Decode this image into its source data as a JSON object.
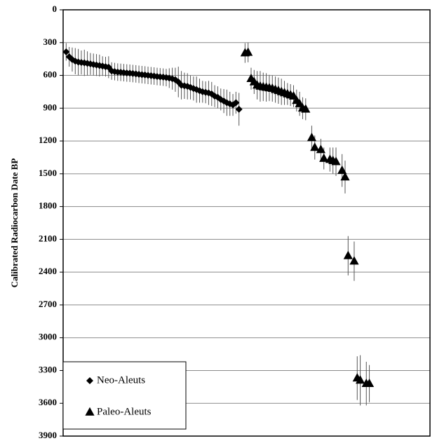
{
  "chart_data": {
    "type": "scatter",
    "y_label": "Calibrated Radiocarbon Date BP",
    "y_inverted": true,
    "grid": true,
    "legend_position": "lower left",
    "xlim": [
      0,
      121
    ],
    "ylim": [
      0,
      3900
    ],
    "yticks": [
      0,
      300,
      600,
      900,
      1200,
      1500,
      1800,
      2100,
      2400,
      2700,
      3000,
      3300,
      3600,
      3900
    ],
    "series": [
      {
        "name": "Neo-Aleuts",
        "marker": "diamond",
        "color": "#000000",
        "x": [
          1,
          2,
          3,
          4,
          5,
          6,
          7,
          8,
          9,
          10,
          11,
          12,
          13,
          14,
          15,
          16,
          17,
          18,
          19,
          20,
          21,
          22,
          23,
          24,
          25,
          26,
          27,
          28,
          29,
          30,
          31,
          32,
          33,
          34,
          35,
          36,
          37,
          38,
          39,
          40,
          41,
          42,
          43,
          44,
          45,
          46,
          47,
          48,
          49,
          50,
          51,
          52,
          53,
          54,
          55,
          56,
          57,
          58
        ],
        "values": [
          385,
          430,
          455,
          470,
          478,
          482,
          485,
          490,
          495,
          500,
          505,
          510,
          515,
          520,
          525,
          560,
          565,
          570,
          572,
          575,
          578,
          580,
          583,
          586,
          590,
          593,
          596,
          600,
          603,
          606,
          610,
          613,
          616,
          620,
          625,
          630,
          640,
          660,
          690,
          695,
          700,
          710,
          720,
          730,
          740,
          750,
          755,
          760,
          770,
          790,
          800,
          820,
          835,
          850,
          860,
          870,
          850,
          910
        ],
        "errors": [
          80,
          90,
          110,
          120,
          120,
          110,
          120,
          110,
          100,
          100,
          100,
          100,
          90,
          90,
          100,
          80,
          80,
          80,
          80,
          80,
          80,
          80,
          80,
          80,
          80,
          80,
          80,
          80,
          80,
          80,
          80,
          80,
          80,
          80,
          90,
          100,
          110,
          140,
          130,
          120,
          120,
          110,
          110,
          120,
          110,
          100,
          100,
          110,
          110,
          100,
          100,
          100,
          110,
          120,
          110,
          100,
          100,
          150
        ]
      },
      {
        "name": "Paleo-Aleuts",
        "marker": "triangle",
        "color": "#000000",
        "x": [
          60,
          61,
          62,
          63,
          64,
          65,
          66,
          67,
          68,
          69,
          70,
          71,
          72,
          73,
          74,
          75,
          76,
          77,
          78,
          79,
          80,
          82,
          83,
          85,
          86,
          88,
          89,
          90,
          92,
          93,
          94,
          96,
          97,
          98,
          100,
          101
        ],
        "values": [
          395,
          390,
          630,
          660,
          690,
          700,
          705,
          710,
          715,
          720,
          730,
          740,
          750,
          760,
          770,
          780,
          790,
          830,
          860,
          900,
          910,
          1170,
          1260,
          1280,
          1360,
          1370,
          1380,
          1390,
          1470,
          1530,
          2250,
          2300,
          3370,
          3390,
          3420,
          3420
        ],
        "errors": [
          90,
          90,
          100,
          110,
          130,
          140,
          130,
          130,
          120,
          120,
          120,
          120,
          120,
          110,
          100,
          100,
          100,
          100,
          110,
          100,
          100,
          110,
          110,
          100,
          100,
          110,
          120,
          130,
          150,
          150,
          180,
          180,
          200,
          230,
          200,
          170
        ]
      }
    ]
  }
}
